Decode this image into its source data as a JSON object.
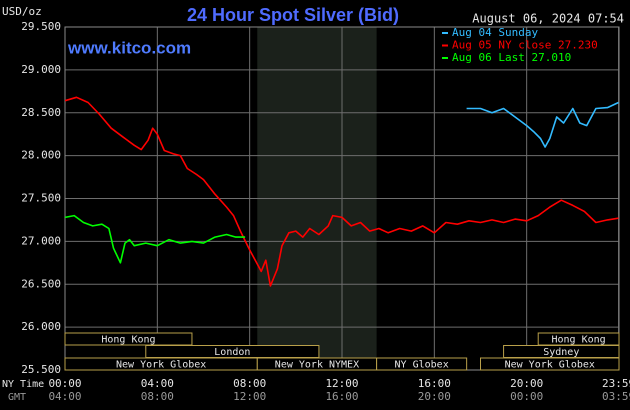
{
  "chart_data": {
    "type": "line",
    "title": "24 Hour Spot Silver (Bid)",
    "unit_label": "USD/oz",
    "timestamp": "August 06, 2024 07:54",
    "website": "www.kitco.com",
    "x_row_labels": [
      "NY Time",
      "GMT"
    ],
    "xlim": [
      0,
      24
    ],
    "xticks": [
      {
        "value": 0,
        "label": "00:00"
      },
      {
        "value": 4,
        "label": "04:00"
      },
      {
        "value": 8,
        "label": "08:00"
      },
      {
        "value": 12,
        "label": "12:00"
      },
      {
        "value": 16,
        "label": "16:00"
      },
      {
        "value": 20,
        "label": "20:00"
      },
      {
        "value": 23.983,
        "label": "23:59"
      }
    ],
    "gmt_labels": [
      "04:00",
      "08:00",
      "12:00",
      "16:00",
      "20:00",
      "00:00",
      "03:59"
    ],
    "ylim": [
      25.5,
      29.5
    ],
    "yticks": [
      {
        "value": 25.5,
        "label": "25.500"
      },
      {
        "value": 26,
        "label": "26.000"
      },
      {
        "value": 26.5,
        "label": "26.500"
      },
      {
        "value": 27,
        "label": "27.000"
      },
      {
        "value": 27.5,
        "label": "27.500"
      },
      {
        "value": 28,
        "label": "28.000"
      },
      {
        "value": 28.5,
        "label": "28.500"
      },
      {
        "value": 29,
        "label": "29.000"
      },
      {
        "value": 29.5,
        "label": "29.500"
      }
    ],
    "grid": true,
    "highlight": {
      "start": 8.33,
      "end": 13.5,
      "color": "#1b211b"
    },
    "series": [
      {
        "name": "Aug 04 Sunday",
        "color": "#33bbff",
        "x": [
          17.4,
          18,
          18.5,
          19,
          19.5,
          20,
          20.3,
          20.6,
          20.8,
          21,
          21.3,
          21.6,
          22,
          22.3,
          22.6,
          23,
          23.5,
          23.98
        ],
        "values": [
          28.55,
          28.55,
          28.5,
          28.55,
          28.45,
          28.35,
          28.28,
          28.2,
          28.1,
          28.2,
          28.45,
          28.38,
          28.55,
          28.38,
          28.35,
          28.55,
          28.56,
          28.62
        ]
      },
      {
        "name": "Aug 05 NY close 27.230",
        "color": "#ff0000",
        "x": [
          0,
          0.5,
          1,
          1.5,
          2,
          2.5,
          3,
          3.3,
          3.6,
          3.8,
          4,
          4.3,
          4.7,
          5,
          5.3,
          5.7,
          6,
          6.5,
          7,
          7.3,
          7.6,
          8,
          8.3,
          8.5,
          8.7,
          8.9,
          9.2,
          9.4,
          9.7,
          10,
          10.3,
          10.6,
          11,
          11.4,
          11.6,
          12,
          12.4,
          12.8,
          13.2,
          13.6,
          14,
          14.5,
          15,
          15.5,
          16,
          16.5,
          17,
          17.5,
          18,
          18.5,
          19,
          19.5,
          20,
          20.5,
          21,
          21.5,
          22,
          22.5,
          23,
          23.5,
          23.98
        ],
        "values": [
          28.64,
          28.68,
          28.62,
          28.48,
          28.32,
          28.22,
          28.12,
          28.07,
          28.18,
          28.32,
          28.25,
          28.06,
          28.02,
          28.0,
          27.85,
          27.78,
          27.72,
          27.55,
          27.4,
          27.3,
          27.12,
          26.9,
          26.75,
          26.65,
          26.78,
          26.48,
          26.68,
          26.95,
          27.1,
          27.12,
          27.05,
          27.15,
          27.08,
          27.18,
          27.3,
          27.28,
          27.18,
          27.22,
          27.12,
          27.15,
          27.1,
          27.15,
          27.12,
          27.18,
          27.1,
          27.22,
          27.2,
          27.24,
          27.22,
          27.25,
          27.22,
          27.26,
          27.24,
          27.3,
          27.4,
          27.48,
          27.42,
          27.35,
          27.22,
          27.25,
          27.27
        ]
      },
      {
        "name": "Aug 06 Last 27.010",
        "color": "#00ff00",
        "x": [
          0,
          0.4,
          0.8,
          1.2,
          1.6,
          1.9,
          2.1,
          2.4,
          2.6,
          2.8,
          3,
          3.5,
          4,
          4.5,
          5,
          5.5,
          6,
          6.5,
          7,
          7.4,
          7.8
        ],
        "values": [
          27.28,
          27.3,
          27.22,
          27.18,
          27.2,
          27.15,
          26.92,
          26.75,
          26.98,
          27.02,
          26.95,
          26.98,
          26.95,
          27.02,
          26.98,
          27.0,
          26.98,
          27.05,
          27.08,
          27.05,
          27.05
        ]
      }
    ],
    "sessions": [
      {
        "label": "Hong Kong",
        "start": 0,
        "end": 5.5,
        "row": 0
      },
      {
        "label": "Hong Kong",
        "start": 20.5,
        "end": 24,
        "row": 0
      },
      {
        "label": "London",
        "start": 3.5,
        "end": 11,
        "row": 1
      },
      {
        "label": "Sydney",
        "start": 19,
        "end": 24,
        "row": 1
      },
      {
        "label": "New York Globex",
        "start": 0,
        "end": 8.33,
        "row": 2
      },
      {
        "label": "New York NYMEX",
        "start": 8.33,
        "end": 13.5,
        "row": 2
      },
      {
        "label": "NY Globex",
        "start": 13.5,
        "end": 17.4,
        "row": 2
      },
      {
        "label": "New York Globex",
        "start": 18,
        "end": 24,
        "row": 2
      }
    ]
  }
}
